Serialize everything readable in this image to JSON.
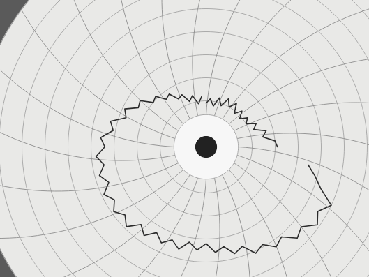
{
  "chart_data": {
    "type": "polar line",
    "x": [
      0,
      5,
      10,
      15,
      20,
      25,
      30,
      35,
      40,
      45,
      50,
      55,
      60,
      65,
      70,
      75,
      80,
      85,
      90,
      95,
      100,
      105,
      110,
      115,
      120,
      125,
      130,
      135,
      140,
      145,
      150,
      155,
      160,
      165,
      170,
      175,
      180,
      185,
      190,
      195,
      200,
      205,
      210,
      215,
      220,
      225,
      230,
      235,
      240,
      245,
      250,
      255,
      260,
      265,
      270,
      275,
      280,
      285,
      290,
      295,
      300,
      305,
      310,
      315,
      320,
      325,
      330,
      335,
      340,
      345,
      350,
      355
    ],
    "values": [
      19,
      21,
      18,
      22,
      19,
      23,
      20,
      23,
      19,
      22,
      19,
      22,
      20,
      24,
      22,
      27,
      25,
      30,
      31,
      null,
      45,
      49,
      53,
      60,
      56,
      59,
      54,
      56,
      51,
      53,
      49,
      51,
      46,
      48,
      44,
      46,
      42,
      45,
      42,
      46,
      43,
      46,
      43,
      47,
      44,
      49,
      46,
      49,
      46,
      49,
      45,
      48,
      45,
      48,
      44,
      46,
      41,
      43,
      37,
      39,
      34,
      35,
      30,
      31,
      27,
      28,
      24,
      25,
      21,
      23,
      19,
      22
    ],
    "color": "#2b2b2b",
    "xlim": [
      0,
      360
    ],
    "xticks": [
      0,
      15,
      30,
      45,
      60,
      75,
      90,
      105,
      120,
      135,
      150,
      165,
      180,
      195,
      210,
      225,
      240,
      255,
      270,
      285,
      300,
      315,
      330,
      345
    ],
    "ylim": [
      0,
      100
    ],
    "yticks": [
      20,
      30,
      40,
      50,
      60,
      70,
      80,
      90,
      100
    ],
    "grid": true,
    "tick_labels": false
  }
}
